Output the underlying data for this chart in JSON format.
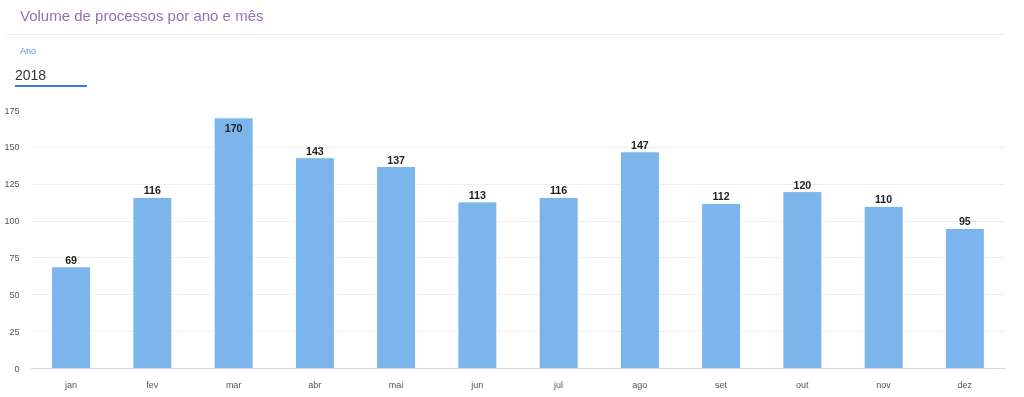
{
  "chart_data": {
    "type": "bar",
    "title": "Volume de processos por ano e mês",
    "annotations": [
      "Ano",
      "2018"
    ],
    "categories": [
      "jan",
      "fev",
      "mar",
      "abr",
      "mai",
      "jun",
      "jul",
      "ago",
      "set",
      "out",
      "nov",
      "dez"
    ],
    "values": [
      69,
      116,
      170,
      143,
      137,
      113,
      116,
      147,
      112,
      120,
      110,
      95
    ],
    "color": "#7cb4ec",
    "ylim": [
      0,
      175
    ],
    "yticks": [
      0,
      25,
      50,
      75,
      100,
      125,
      150,
      175
    ],
    "grid": "y",
    "data_labels": true
  }
}
